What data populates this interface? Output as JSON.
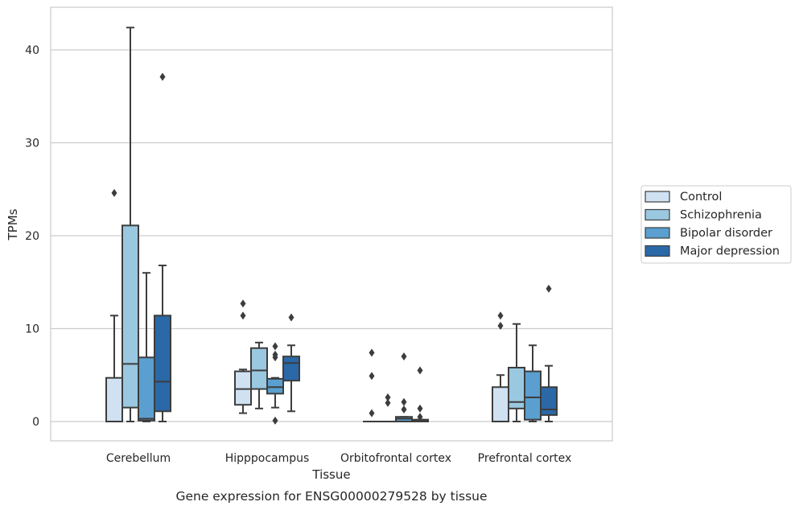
{
  "chart_data": {
    "type": "box",
    "title": "",
    "caption": "Gene expression for ENSG00000279528 by tissue",
    "xlabel": "Tissue",
    "ylabel": "TPMs",
    "ylim": [
      -2.1,
      44.4
    ],
    "yticks": [
      0,
      10,
      20,
      30,
      40
    ],
    "grid": "horizontal",
    "legend_position": "right",
    "categories": [
      "Cerebellum",
      "Hipppocampus",
      "Orbitofrontal cortex",
      "Prefrontal cortex"
    ],
    "series": [
      {
        "name": "Control",
        "color": "#d0e1f2",
        "boxes": [
          {
            "min": 0,
            "q1": 0,
            "median": 0,
            "q3": 4.7,
            "max": 11.4,
            "outliers": [
              24.6
            ]
          },
          {
            "min": 0.9,
            "q1": 1.8,
            "median": 3.5,
            "q3": 5.4,
            "max": 5.6,
            "outliers": [
              12.7,
              11.4
            ]
          },
          {
            "min": 0,
            "q1": 0,
            "median": 0,
            "q3": 0,
            "max": 0,
            "outliers": [
              7.4,
              4.9,
              0.9
            ]
          },
          {
            "min": 0,
            "q1": 0,
            "median": 0,
            "q3": 3.7,
            "max": 5.0,
            "outliers": [
              11.4,
              10.3
            ]
          }
        ]
      },
      {
        "name": "Schizophrenia",
        "color": "#9ac8e0",
        "boxes": [
          {
            "min": 0,
            "q1": 1.5,
            "median": 6.2,
            "q3": 21.1,
            "max": 42.4,
            "outliers": []
          },
          {
            "min": 1.4,
            "q1": 3.5,
            "median": 5.5,
            "q3": 7.9,
            "max": 8.5,
            "outliers": []
          },
          {
            "min": 0,
            "q1": 0,
            "median": 0,
            "q3": 0,
            "max": 0,
            "outliers": [
              2.6,
              2.0
            ]
          },
          {
            "min": 0,
            "q1": 1.4,
            "median": 2.1,
            "q3": 5.8,
            "max": 10.5,
            "outliers": []
          }
        ]
      },
      {
        "name": "Bipolar disorder",
        "color": "#5a9fcf",
        "boxes": [
          {
            "min": 0,
            "q1": 0.1,
            "median": 0.3,
            "q3": 6.9,
            "max": 16.0,
            "outliers": []
          },
          {
            "min": 1.5,
            "q1": 3.0,
            "median": 3.7,
            "q3": 4.6,
            "max": 4.7,
            "outliers": [
              8.1,
              7.2,
              6.9,
              0.1
            ]
          },
          {
            "min": 0,
            "q1": 0,
            "median": 0.3,
            "q3": 0.5,
            "max": 0.5,
            "outliers": [
              7.0,
              2.1,
              1.3
            ]
          },
          {
            "min": 0,
            "q1": 0.2,
            "median": 2.6,
            "q3": 5.4,
            "max": 8.2,
            "outliers": []
          }
        ]
      },
      {
        "name": "Major depression",
        "color": "#2a68a8",
        "boxes": [
          {
            "min": 0,
            "q1": 1.1,
            "median": 4.3,
            "q3": 11.4,
            "max": 16.8,
            "outliers": [
              37.1
            ]
          },
          {
            "min": 1.1,
            "q1": 4.4,
            "median": 6.3,
            "q3": 7.0,
            "max": 8.2,
            "outliers": [
              11.2
            ]
          },
          {
            "min": 0,
            "q1": 0,
            "median": 0.1,
            "q3": 0.2,
            "max": 0.2,
            "outliers": [
              5.5,
              1.4,
              0.5
            ]
          },
          {
            "min": 0,
            "q1": 0.7,
            "median": 1.3,
            "q3": 3.7,
            "max": 6.0,
            "outliers": [
              14.3
            ]
          }
        ]
      }
    ]
  }
}
